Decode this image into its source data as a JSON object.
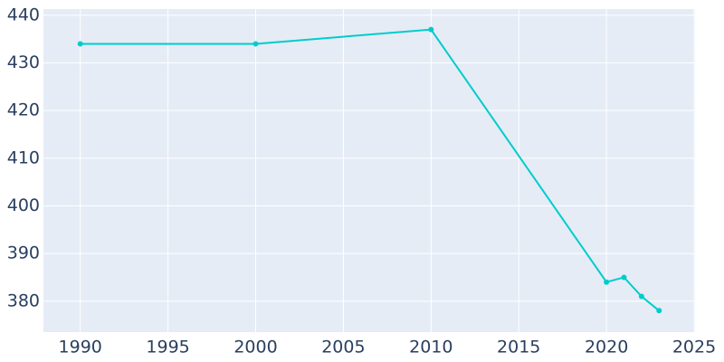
{
  "chart_data": {
    "type": "line",
    "x": [
      1990,
      2000,
      2010,
      2020,
      2021,
      2022,
      2023
    ],
    "series": [
      {
        "color": "#00cccc",
        "values": [
          434,
          434,
          437,
          384,
          385,
          381,
          378
        ]
      }
    ],
    "xlim": [
      1987.9,
      2025.05
    ],
    "xticks": [
      1990,
      1995,
      2000,
      2005,
      2010,
      2015,
      2020,
      2025
    ],
    "ylim": [
      373.5,
      441.3
    ],
    "yticks": [
      380,
      390,
      400,
      410,
      420,
      430,
      440
    ],
    "grid": true
  }
}
